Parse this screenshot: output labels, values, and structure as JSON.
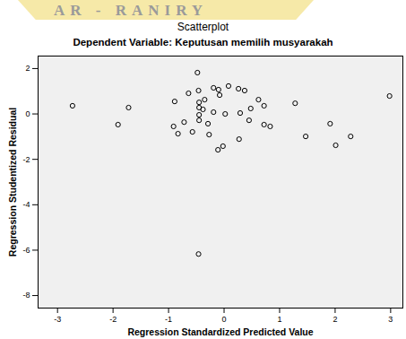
{
  "chart_data": {
    "type": "scatter",
    "title": "Scatterplot",
    "subtitle": "Dependent Variable: Keputusan memilih musyarakah",
    "annotations": [
      "AR - RANIRY"
    ],
    "x_label": "Regression Standardized Predicted Value",
    "y_label": "Regression Studentized Residual",
    "x": [
      -0.48,
      -0.64,
      -0.46,
      -0.19,
      -0.1,
      0.08,
      0.26,
      0.37,
      -0.08,
      -0.35,
      -0.45,
      -0.89,
      -2.73,
      -1.72,
      -0.45,
      -0.38,
      -0.45,
      -0.19,
      0.02,
      0.29,
      0.48,
      0.62,
      0.72,
      1.28,
      2.98,
      -0.45,
      -0.72,
      -0.29,
      0.45,
      0.72,
      0.83,
      -0.91,
      -0.83,
      -0.57,
      -0.27,
      0.27,
      -0.02,
      -0.11,
      -1.91,
      1.47,
      1.91,
      2.01,
      2.28,
      -0.46
    ],
    "values": [
      1.82,
      0.91,
      1.03,
      1.15,
      1.07,
      1.23,
      1.11,
      1.03,
      0.83,
      0.63,
      0.51,
      0.55,
      0.36,
      0.28,
      0.28,
      0.2,
      -0.04,
      0.08,
      0.0,
      0.04,
      0.24,
      0.63,
      0.36,
      0.47,
      0.79,
      -0.28,
      -0.36,
      -0.43,
      -0.28,
      -0.47,
      -0.55,
      -0.55,
      -0.87,
      -0.79,
      -0.91,
      -1.11,
      -1.42,
      -1.58,
      -0.47,
      -0.99,
      -0.43,
      -1.38,
      -0.99,
      -6.17
    ],
    "xlim": [
      -3.35,
      3.22
    ],
    "xticks": [
      -3,
      -2,
      -1,
      0,
      1,
      2,
      3
    ],
    "ylim": [
      -8.55,
      2.55
    ],
    "yticks": [
      -8,
      -6,
      -4,
      -2,
      0,
      2
    ],
    "color": "#000000",
    "marker": "circle",
    "grid": false
  }
}
